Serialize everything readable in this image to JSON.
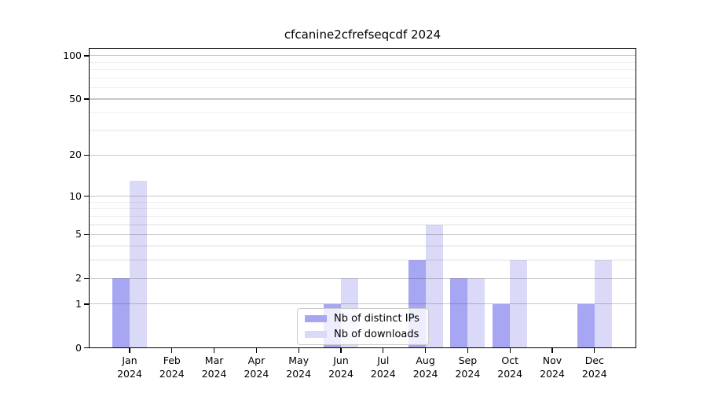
{
  "chart_data": {
    "type": "bar",
    "title": "cfcanine2cfrefseqcdf 2024",
    "categories": [
      "Jan",
      "Feb",
      "Mar",
      "Apr",
      "May",
      "Jun",
      "Jul",
      "Aug",
      "Sep",
      "Oct",
      "Nov",
      "Dec"
    ],
    "category_year": "2024",
    "series": [
      {
        "name": "Nb of distinct IPs",
        "color": "#a6a6f2",
        "values": [
          2,
          0,
          0,
          0,
          0,
          1,
          0,
          3,
          2,
          1,
          0,
          1
        ]
      },
      {
        "name": "Nb of downloads",
        "color": "#dadaf8",
        "values": [
          13,
          0,
          0,
          0,
          0,
          2,
          0,
          6,
          2,
          3,
          0,
          3
        ]
      }
    ],
    "yscale": "log10(value+1)",
    "yticks": [
      0,
      1,
      2,
      5,
      10,
      20,
      50,
      100
    ],
    "minor_yticks": [
      3,
      4,
      6,
      7,
      8,
      9,
      30,
      40,
      60,
      70,
      80,
      90
    ],
    "ylim": [
      0,
      112
    ],
    "xlabel": "",
    "ylabel": "",
    "grid": "both",
    "legend_position": "lower-center-inside",
    "background": "#ffffff",
    "text_color": "#000000",
    "grid_major_color": "#c8c8c8",
    "grid_minor_color": "#ececec"
  }
}
